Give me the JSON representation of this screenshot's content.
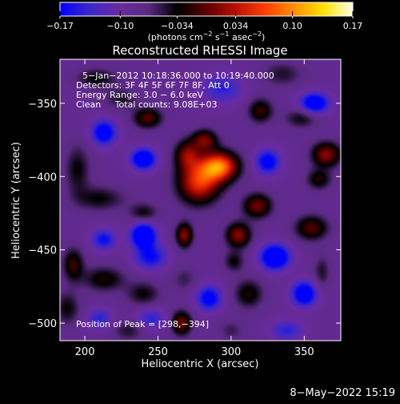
{
  "chart_data": {
    "type": "heatmap",
    "title": "Reconstructed RHESSI Image",
    "xlabel": "Heliocentric X (arcsec)",
    "ylabel": "Heliocentric Y (arcsec)",
    "xlim": [
      183,
      375
    ],
    "ylim": [
      -512,
      -320
    ],
    "x_ticks": [
      200,
      250,
      300,
      350
    ],
    "y_ticks": [
      -350,
      -400,
      -450,
      -500
    ],
    "x_tick_labels": [
      "200",
      "250",
      "300",
      "350"
    ],
    "y_tick_labels": [
      "−350",
      "−400",
      "−450",
      "−500"
    ],
    "colorbar": {
      "range": [
        -0.17,
        0.17
      ],
      "ticks": [
        -0.17,
        -0.1,
        -0.034,
        0.034,
        0.1,
        0.17
      ],
      "tick_labels": [
        "−0.17",
        "−0.10",
        "−0.034",
        "0.034",
        "0.10",
        "0.17"
      ],
      "unit_label_parts": {
        "a": "(photons cm",
        "b": "−2",
        "c": " s",
        "d": "−1",
        "e": " asec",
        "f": "−2",
        "g": ")"
      },
      "colors": [
        "#0000ff",
        "#3c28c8",
        "#6a2aa0",
        "#5a2a82",
        "#000000",
        "#5c0000",
        "#b81000",
        "#ff3c00",
        "#ff9000",
        "#ffe200",
        "#ffffe6"
      ]
    },
    "annotations": {
      "time_range": "5−Jan−2012 10:18:36.000 to 10:19:40.000",
      "detectors": "Detectors: 3F 4F 5F 6F 7F 8F, Att 0",
      "energy_range": "Energy Range: 3.0 − 6.0 keV",
      "method_counts": "Clean     Total counts: 9.08E+03",
      "peak_position": "Position of Peak = [298,−394]"
    },
    "peak": [
      298,
      -394
    ],
    "image_blobs": [
      {
        "x": 292,
        "y": -393,
        "amp": 0.17,
        "sx": 9,
        "sy": 7
      },
      {
        "x": 278,
        "y": -404,
        "amp": 0.14,
        "sx": 10,
        "sy": 10
      },
      {
        "x": 270,
        "y": -385,
        "amp": 0.09,
        "sx": 6,
        "sy": 7
      },
      {
        "x": 268,
        "y": -440,
        "amp": 0.1,
        "sx": 4,
        "sy": 6
      },
      {
        "x": 282,
        "y": -375,
        "amp": 0.09,
        "sx": 6,
        "sy": 5
      },
      {
        "x": 318,
        "y": -420,
        "amp": 0.09,
        "sx": 7,
        "sy": 6
      },
      {
        "x": 305,
        "y": -440,
        "amp": 0.1,
        "sx": 6,
        "sy": 6
      },
      {
        "x": 240,
        "y": -425,
        "amp": 0.05,
        "sx": 7,
        "sy": 5
      },
      {
        "x": 365,
        "y": -385,
        "amp": 0.1,
        "sx": 7,
        "sy": 6
      },
      {
        "x": 360,
        "y": -402,
        "amp": 0.06,
        "sx": 6,
        "sy": 5
      },
      {
        "x": 355,
        "y": -435,
        "amp": 0.08,
        "sx": 8,
        "sy": 6
      },
      {
        "x": 362,
        "y": -465,
        "amp": 0.04,
        "sx": 4,
        "sy": 8
      },
      {
        "x": 243,
        "y": -360,
        "amp": 0.08,
        "sx": 7,
        "sy": 5
      },
      {
        "x": 195,
        "y": -395,
        "amp": 0.05,
        "sx": 6,
        "sy": 12
      },
      {
        "x": 210,
        "y": -415,
        "amp": 0.05,
        "sx": 12,
        "sy": 6
      },
      {
        "x": 213,
        "y": -470,
        "amp": 0.06,
        "sx": 10,
        "sy": 6
      },
      {
        "x": 192,
        "y": -460,
        "amp": 0.07,
        "sx": 5,
        "sy": 8
      },
      {
        "x": 188,
        "y": -490,
        "amp": 0.05,
        "sx": 6,
        "sy": 8
      },
      {
        "x": 240,
        "y": -480,
        "amp": 0.05,
        "sx": 8,
        "sy": 6
      },
      {
        "x": 230,
        "y": -505,
        "amp": 0.04,
        "sx": 8,
        "sy": 5
      },
      {
        "x": 266,
        "y": -500,
        "amp": 0.09,
        "sx": 5,
        "sy": 6
      },
      {
        "x": 268,
        "y": -470,
        "amp": 0.03,
        "sx": 6,
        "sy": 6
      },
      {
        "x": 312,
        "y": -480,
        "amp": 0.06,
        "sx": 7,
        "sy": 7
      },
      {
        "x": 302,
        "y": -458,
        "amp": 0.05,
        "sx": 5,
        "sy": 5
      },
      {
        "x": 300,
        "y": -505,
        "amp": 0.03,
        "sx": 6,
        "sy": 5
      },
      {
        "x": 320,
        "y": -355,
        "amp": 0.07,
        "sx": 6,
        "sy": 6
      },
      {
        "x": 335,
        "y": -330,
        "amp": 0.04,
        "sx": 10,
        "sy": 6
      },
      {
        "x": 348,
        "y": -360,
        "amp": 0.05,
        "sx": 8,
        "sy": 5
      },
      {
        "x": 208,
        "y": -333,
        "amp": 0.05,
        "sx": 10,
        "sy": 5
      },
      {
        "x": 225,
        "y": -347,
        "amp": 0.04,
        "sx": 8,
        "sy": 5
      },
      {
        "x": 240,
        "y": -388,
        "amp": -0.13,
        "sx": 6,
        "sy": 5
      },
      {
        "x": 213,
        "y": -370,
        "amp": -0.11,
        "sx": 6,
        "sy": 6
      },
      {
        "x": 240,
        "y": -440,
        "amp": -0.14,
        "sx": 6,
        "sy": 6
      },
      {
        "x": 245,
        "y": -455,
        "amp": -0.08,
        "sx": 8,
        "sy": 6
      },
      {
        "x": 330,
        "y": -455,
        "amp": -0.14,
        "sx": 7,
        "sy": 6
      },
      {
        "x": 350,
        "y": -480,
        "amp": -0.12,
        "sx": 6,
        "sy": 6
      },
      {
        "x": 357,
        "y": -350,
        "amp": -0.12,
        "sx": 7,
        "sy": 5
      },
      {
        "x": 325,
        "y": -390,
        "amp": -0.1,
        "sx": 6,
        "sy": 6
      },
      {
        "x": 285,
        "y": -483,
        "amp": -0.1,
        "sx": 6,
        "sy": 6
      },
      {
        "x": 213,
        "y": -443,
        "amp": -0.08,
        "sx": 6,
        "sy": 5
      },
      {
        "x": 245,
        "y": -497,
        "amp": -0.06,
        "sx": 7,
        "sy": 5
      },
      {
        "x": 210,
        "y": -497,
        "amp": -0.06,
        "sx": 6,
        "sy": 5
      },
      {
        "x": 294,
        "y": -340,
        "amp": -0.06,
        "sx": 10,
        "sy": 7
      },
      {
        "x": 338,
        "y": -505,
        "amp": -0.06,
        "sx": 8,
        "sy": 5
      }
    ]
  },
  "footer": {
    "date": "8−May−2022 15:19"
  }
}
